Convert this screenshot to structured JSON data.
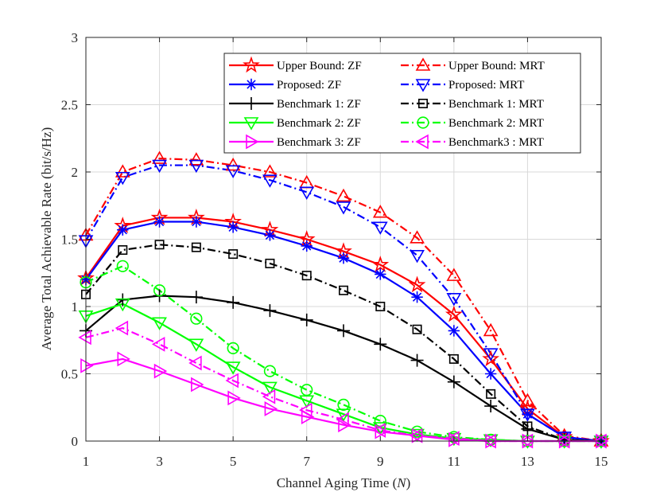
{
  "chart_data": {
    "type": "line",
    "title": "",
    "xlabel_prefix": "Channel Aging Time (",
    "xlabel_var": "N",
    "xlabel_suffix": ")",
    "ylabel": "Average Total Achievable Rate (bit/s/Hz)",
    "xlim": [
      1,
      15
    ],
    "ylim": [
      0,
      3
    ],
    "xticks": [
      1,
      3,
      5,
      7,
      9,
      11,
      13,
      15
    ],
    "yticks": [
      0,
      0.5,
      1,
      1.5,
      2,
      2.5,
      3
    ],
    "ytick_labels": [
      "0",
      "0.5",
      "1",
      "1.5",
      "2",
      "2.5",
      "3"
    ],
    "grid": true,
    "legend_position": "top-right",
    "x": [
      1,
      2,
      3,
      4,
      5,
      6,
      7,
      8,
      9,
      10,
      11,
      12,
      13,
      14,
      15
    ],
    "series": [
      {
        "name": "Upper Bound: ZF",
        "color": "#ff0000",
        "dash": "solid",
        "marker": "star",
        "values": [
          1.21,
          1.6,
          1.66,
          1.66,
          1.63,
          1.57,
          1.5,
          1.41,
          1.31,
          1.16,
          0.94,
          0.61,
          0.24,
          0.03,
          0.0
        ]
      },
      {
        "name": "Upper Bound: MRT",
        "color": "#ff0000",
        "dash": "dashdot",
        "marker": "triangle-up",
        "values": [
          1.53,
          2.0,
          2.1,
          2.09,
          2.05,
          2.0,
          1.92,
          1.82,
          1.7,
          1.51,
          1.23,
          0.82,
          0.3,
          0.04,
          0.0
        ]
      },
      {
        "name": "Proposed: ZF",
        "color": "#0000ff",
        "dash": "solid",
        "marker": "asterisk",
        "values": [
          1.2,
          1.57,
          1.63,
          1.63,
          1.59,
          1.53,
          1.45,
          1.36,
          1.24,
          1.07,
          0.82,
          0.5,
          0.2,
          0.03,
          0.0
        ]
      },
      {
        "name": "Proposed: MRT",
        "color": "#0000ff",
        "dash": "dashdot",
        "marker": "triangle-down",
        "values": [
          1.49,
          1.96,
          2.05,
          2.05,
          2.01,
          1.94,
          1.85,
          1.74,
          1.59,
          1.38,
          1.06,
          0.65,
          0.2,
          0.03,
          0.0
        ]
      },
      {
        "name": "Benchmark 1: ZF",
        "color": "#000000",
        "dash": "solid",
        "marker": "plus",
        "values": [
          0.82,
          1.05,
          1.08,
          1.07,
          1.03,
          0.97,
          0.9,
          0.82,
          0.72,
          0.6,
          0.44,
          0.26,
          0.09,
          0.01,
          0.0
        ]
      },
      {
        "name": "Benchmark 1: MRT",
        "color": "#000000",
        "dash": "dashdot",
        "marker": "square",
        "values": [
          1.09,
          1.42,
          1.46,
          1.44,
          1.39,
          1.32,
          1.23,
          1.12,
          1.0,
          0.83,
          0.61,
          0.35,
          0.11,
          0.01,
          0.0
        ]
      },
      {
        "name": "Benchmark 2: ZF",
        "color": "#00ff00",
        "dash": "solid",
        "marker": "triangle-down",
        "values": [
          0.93,
          1.02,
          0.88,
          0.72,
          0.55,
          0.4,
          0.3,
          0.2,
          0.1,
          0.05,
          0.02,
          0.01,
          0.0,
          0.0,
          0.0
        ]
      },
      {
        "name": "Benchmark 2: MRT",
        "color": "#00ff00",
        "dash": "dashdot",
        "marker": "circle",
        "values": [
          1.18,
          1.3,
          1.12,
          0.91,
          0.69,
          0.52,
          0.38,
          0.27,
          0.15,
          0.07,
          0.03,
          0.01,
          0.0,
          0.0,
          0.0
        ]
      },
      {
        "name": "Benchmark 3: ZF",
        "color": "#ff00ff",
        "dash": "solid",
        "marker": "triangle-right",
        "values": [
          0.56,
          0.61,
          0.52,
          0.42,
          0.32,
          0.24,
          0.18,
          0.12,
          0.07,
          0.04,
          0.01,
          0.0,
          0.0,
          0.0,
          0.0
        ]
      },
      {
        "name": "Benchmark3 : MRT",
        "color": "#ff00ff",
        "dash": "dashdot",
        "marker": "triangle-left",
        "values": [
          0.77,
          0.84,
          0.72,
          0.58,
          0.45,
          0.33,
          0.23,
          0.16,
          0.08,
          0.04,
          0.02,
          0.0,
          0.0,
          0.0,
          0.0
        ]
      }
    ]
  }
}
